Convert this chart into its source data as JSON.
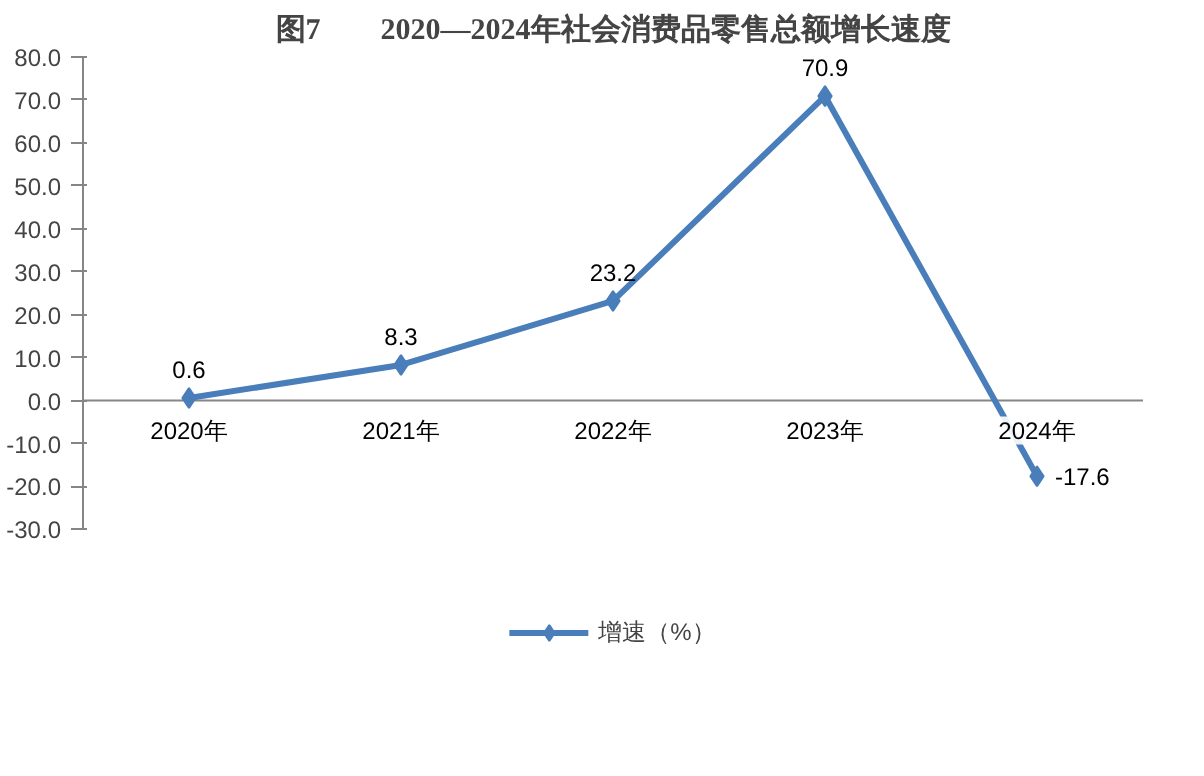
{
  "chart_data": {
    "type": "line",
    "title": "图7　　2020—2024年社会消费品零售总额增长速度",
    "categories": [
      "2020年",
      "2021年",
      "2022年",
      "2023年",
      "2024年"
    ],
    "series": [
      {
        "name": "增速（%）",
        "color": "#4a7ebb",
        "values": [
          0.6,
          8.3,
          23.2,
          70.9,
          -17.6
        ]
      }
    ],
    "ylim": [
      -30,
      80
    ],
    "yticks": [
      {
        "value": -30,
        "label": "-30.0"
      },
      {
        "value": -20,
        "label": "-20.0"
      },
      {
        "value": -10,
        "label": "-10.0"
      },
      {
        "value": 0,
        "label": "0.0"
      },
      {
        "value": 10,
        "label": "10.0"
      },
      {
        "value": 20,
        "label": "20.0"
      },
      {
        "value": 30,
        "label": "30.0"
      },
      {
        "value": 40,
        "label": "40.0"
      },
      {
        "value": 50,
        "label": "50.0"
      },
      {
        "value": 60,
        "label": "60.0"
      },
      {
        "value": 70,
        "label": "70.0"
      },
      {
        "value": 80,
        "label": "80.0"
      }
    ],
    "data_labels": true,
    "grid": false,
    "legend": "bottom",
    "marker": "diamond",
    "line_style": "solid"
  }
}
